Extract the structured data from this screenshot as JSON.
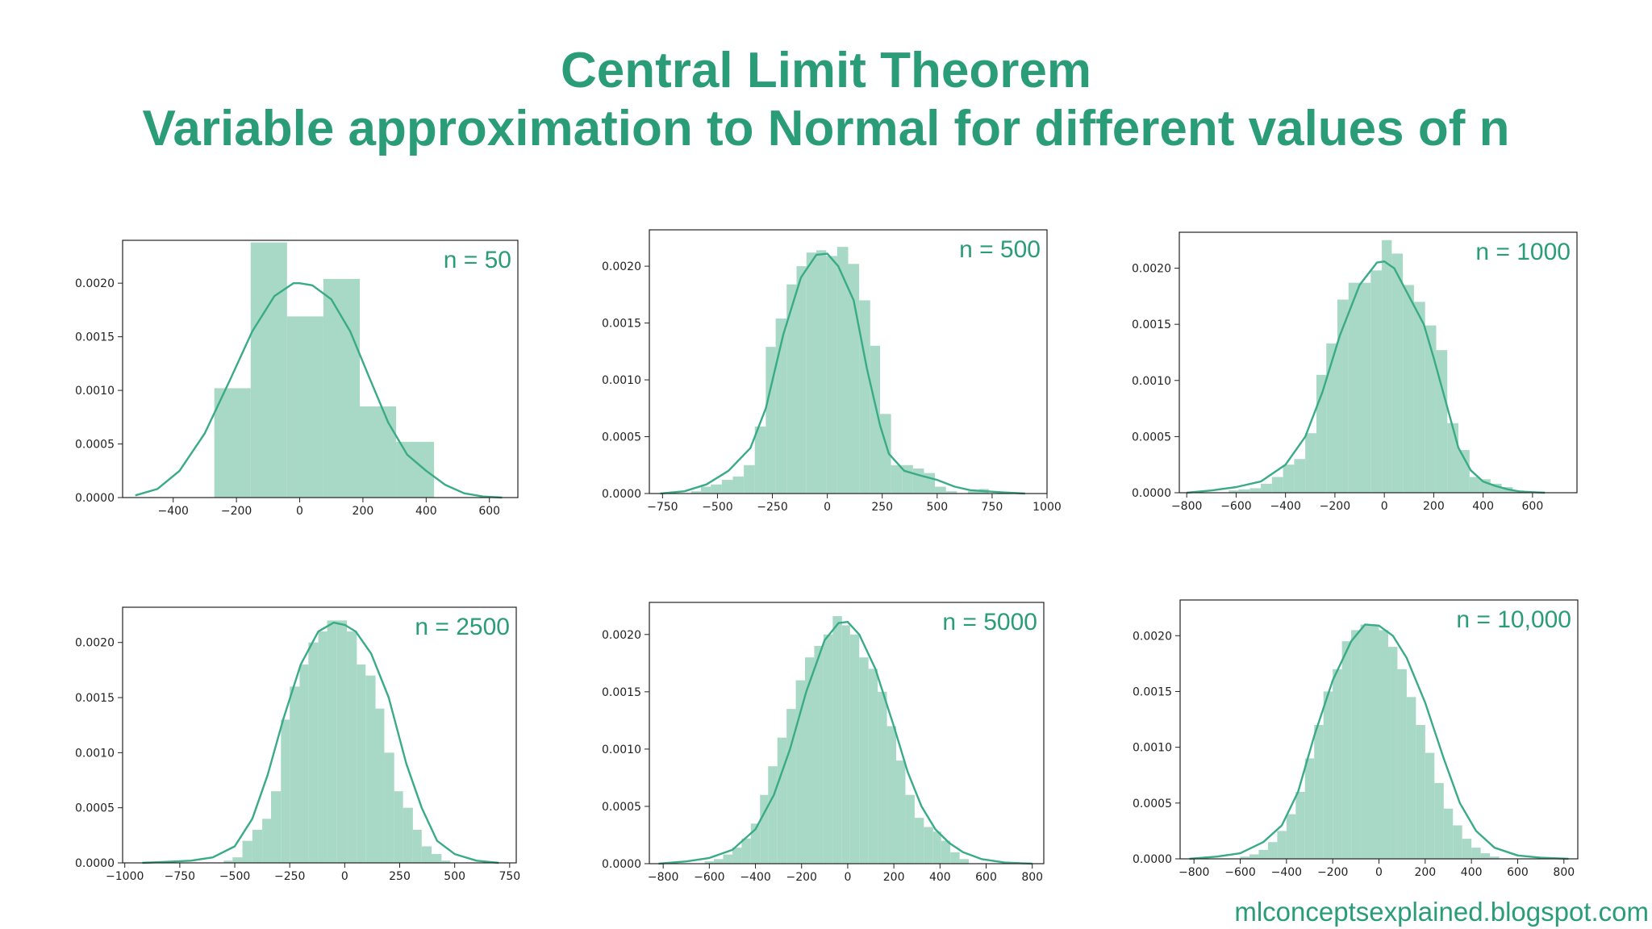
{
  "title_line1": "Central Limit Theorem",
  "title_line2": "Variable approximation to Normal for different values of n",
  "footer": "mlconceptsexplained.blogspot.com",
  "colors": {
    "accent": "#2a9d78",
    "bar": "#a8d8c6",
    "curve": "#3aab87"
  },
  "chart_data": [
    {
      "type": "bar",
      "annotation": "n = 50",
      "xlim": [
        -560,
        690
      ],
      "ylim": [
        0,
        0.0024
      ],
      "xticks": [
        -400,
        -200,
        0,
        200,
        400,
        600
      ],
      "xtick_labels": [
        "−400",
        "−200",
        "0",
        "200",
        "400",
        "600"
      ],
      "yticks": [
        0,
        0.0005,
        0.001,
        0.0015,
        0.002
      ],
      "ytick_labels": [
        "0.0000",
        "0.0005",
        "0.0010",
        "0.0015",
        "0.0020"
      ],
      "bin_edges": [
        -270,
        -155,
        -40,
        75,
        190,
        305,
        425
      ],
      "densities": [
        0.00102,
        0.00238,
        0.00169,
        0.00204,
        0.00085,
        0.00052
      ],
      "kde_x": [
        -520,
        -450,
        -380,
        -300,
        -220,
        -150,
        -80,
        -20,
        0,
        40,
        100,
        160,
        220,
        280,
        340,
        400,
        460,
        520,
        580,
        640
      ],
      "kde_y": [
        2e-05,
        8e-05,
        0.00025,
        0.0006,
        0.0011,
        0.00155,
        0.00188,
        0.002,
        0.002,
        0.00198,
        0.00185,
        0.00155,
        0.00112,
        0.0007,
        0.0004,
        0.00025,
        0.00012,
        4e-05,
        1e-05,
        0
      ]
    },
    {
      "type": "bar",
      "annotation": "n = 500",
      "xlim": [
        -810,
        1000
      ],
      "ylim": [
        0,
        0.00232
      ],
      "xticks": [
        -750,
        -500,
        -250,
        0,
        250,
        500,
        750,
        1000
      ],
      "xtick_labels": [
        "−750",
        "−500",
        "−250",
        "0",
        "250",
        "500",
        "750",
        "1000"
      ],
      "yticks": [
        0,
        0.0005,
        0.001,
        0.0015,
        0.002
      ],
      "ytick_labels": [
        "0.0000",
        "0.0005",
        "0.0010",
        "0.0015",
        "0.0020"
      ],
      "bin_edges": [
        -620,
        -575,
        -530,
        -480,
        -430,
        -380,
        -330,
        -280,
        -235,
        -185,
        -140,
        -95,
        -50,
        -5,
        45,
        95,
        145,
        195,
        240,
        290,
        340,
        390,
        440,
        490,
        540,
        590,
        640,
        690,
        735,
        785
      ],
      "densities": [
        2e-05,
        6e-05,
        8e-05,
        0.00012,
        0.00015,
        0.00025,
        0.00059,
        0.00129,
        0.00154,
        0.00184,
        0.002,
        0.00212,
        0.00214,
        0.00209,
        0.00217,
        0.00202,
        0.0017,
        0.0013,
        0.0007,
        0.00025,
        0.00025,
        0.00022,
        0.00018,
        6e-05,
        2e-05,
        0.0,
        2e-05,
        4e-05,
        0.0
      ],
      "kde_x": [
        -760,
        -650,
        -550,
        -450,
        -350,
        -280,
        -200,
        -120,
        -50,
        0,
        50,
        120,
        180,
        240,
        280,
        350,
        420,
        500,
        580,
        650,
        720,
        800,
        900
      ],
      "kde_y": [
        0,
        2e-05,
        8e-05,
        0.0002,
        0.0004,
        0.00075,
        0.0014,
        0.0019,
        0.0021,
        0.00211,
        0.002,
        0.0017,
        0.0011,
        0.0006,
        0.00035,
        0.0002,
        0.00016,
        0.00012,
        6e-05,
        3e-05,
        2e-05,
        1e-05,
        0
      ]
    },
    {
      "type": "bar",
      "annotation": "n = 1000",
      "xlim": [
        -830,
        780
      ],
      "ylim": [
        0,
        0.00232
      ],
      "xticks": [
        -800,
        -600,
        -400,
        -200,
        0,
        200,
        400,
        600
      ],
      "xtick_labels": [
        "−800",
        "−600",
        "−400",
        "−200",
        "0",
        "200",
        "400",
        "600"
      ],
      "yticks": [
        0,
        0.0005,
        0.001,
        0.0015,
        0.002
      ],
      "ytick_labels": [
        "0.0000",
        "0.0005",
        "0.0010",
        "0.0015",
        "0.0020"
      ],
      "bin_edges": [
        -630,
        -590,
        -545,
        -500,
        -455,
        -410,
        -365,
        -320,
        -275,
        -235,
        -190,
        -145,
        -100,
        -55,
        -10,
        30,
        75,
        120,
        165,
        210,
        255,
        300,
        345,
        385,
        430,
        475,
        520,
        565
      ],
      "densities": [
        2e-05,
        3e-05,
        4e-05,
        8e-05,
        0.00014,
        0.00025,
        0.0003,
        0.00053,
        0.00105,
        0.00133,
        0.00172,
        0.00187,
        0.00187,
        0.00198,
        0.00225,
        0.00213,
        0.00185,
        0.0017,
        0.00149,
        0.00127,
        0.00062,
        0.00038,
        0.00014,
        0.00012,
        8e-05,
        5e-05,
        2e-05
      ],
      "kde_x": [
        -800,
        -700,
        -600,
        -500,
        -400,
        -320,
        -250,
        -180,
        -100,
        -30,
        0,
        40,
        100,
        160,
        200,
        250,
        300,
        350,
        400,
        450,
        500,
        550,
        650
      ],
      "kde_y": [
        0,
        2e-05,
        5e-05,
        0.0001,
        0.00025,
        0.0005,
        0.0009,
        0.0014,
        0.00185,
        0.00205,
        0.00206,
        0.002,
        0.00175,
        0.0015,
        0.0012,
        0.0008,
        0.0004,
        0.0002,
        0.0001,
        6e-05,
        3e-05,
        1e-05,
        0
      ]
    },
    {
      "type": "bar",
      "annotation": "n = 2500",
      "xlim": [
        -1010,
        780
      ],
      "ylim": [
        0,
        0.00232
      ],
      "xticks": [
        -1000,
        -750,
        -500,
        -250,
        0,
        250,
        500,
        750
      ],
      "xtick_labels": [
        "−1000",
        "−750",
        "−500",
        "−250",
        "0",
        "250",
        "500",
        "750"
      ],
      "yticks": [
        0,
        0.0005,
        0.001,
        0.0015,
        0.002
      ],
      "ytick_labels": [
        "0.0000",
        "0.0005",
        "0.0010",
        "0.0015",
        "0.0020"
      ],
      "bin_edges": [
        -550,
        -510,
        -465,
        -420,
        -375,
        -335,
        -290,
        -250,
        -205,
        -165,
        -120,
        -80,
        -35,
        10,
        55,
        95,
        140,
        180,
        225,
        265,
        310,
        350,
        395,
        440,
        480
      ],
      "densities": [
        2e-05,
        5e-05,
        0.0002,
        0.0003,
        0.0004,
        0.00065,
        0.0013,
        0.0016,
        0.0018,
        0.002,
        0.0021,
        0.0022,
        0.0022,
        0.0021,
        0.0018,
        0.0017,
        0.0014,
        0.001,
        0.00065,
        0.0005,
        0.0003,
        0.00015,
        8e-05,
        2e-05
      ],
      "kde_x": [
        -920,
        -800,
        -700,
        -600,
        -500,
        -420,
        -350,
        -280,
        -200,
        -120,
        -50,
        0,
        50,
        120,
        200,
        280,
        350,
        420,
        500,
        600,
        700
      ],
      "kde_y": [
        0,
        1e-05,
        2e-05,
        5e-05,
        0.00015,
        0.0004,
        0.0008,
        0.0013,
        0.0018,
        0.0021,
        0.00218,
        0.00216,
        0.0021,
        0.0019,
        0.0015,
        0.0009,
        0.0005,
        0.0002,
        8e-05,
        2e-05,
        0
      ]
    },
    {
      "type": "bar",
      "annotation": "n = 5000",
      "xlim": [
        -860,
        850
      ],
      "ylim": [
        0,
        0.00228
      ],
      "xticks": [
        -800,
        -600,
        -400,
        -200,
        0,
        200,
        400,
        600,
        800
      ],
      "xtick_labels": [
        "−800",
        "−600",
        "−400",
        "−200",
        "0",
        "200",
        "400",
        "600",
        "800"
      ],
      "yticks": [
        0,
        0.0005,
        0.001,
        0.0015,
        0.002
      ],
      "ytick_labels": [
        "0.0000",
        "0.0005",
        "0.0010",
        "0.0015",
        "0.0020"
      ],
      "bin_edges": [
        -620,
        -580,
        -540,
        -500,
        -460,
        -420,
        -380,
        -345,
        -305,
        -265,
        -225,
        -185,
        -145,
        -105,
        -65,
        -25,
        10,
        50,
        90,
        130,
        170,
        210,
        250,
        290,
        330,
        370,
        405,
        445,
        485,
        525
      ],
      "densities": [
        2e-05,
        4e-05,
        8e-05,
        0.00014,
        0.00022,
        0.00035,
        0.0006,
        0.00085,
        0.0011,
        0.00135,
        0.0016,
        0.0018,
        0.0019,
        0.002,
        0.00216,
        0.00208,
        0.002,
        0.0018,
        0.0017,
        0.0015,
        0.0012,
        0.0009,
        0.0006,
        0.0004,
        0.00032,
        0.00028,
        0.0002,
        0.0001,
        4e-05
      ],
      "kde_x": [
        -820,
        -700,
        -600,
        -500,
        -400,
        -320,
        -250,
        -180,
        -100,
        -40,
        0,
        50,
        120,
        200,
        260,
        320,
        380,
        440,
        500,
        580,
        680,
        800
      ],
      "kde_y": [
        0,
        2e-05,
        5e-05,
        0.00012,
        0.0003,
        0.0006,
        0.001,
        0.0015,
        0.00195,
        0.0021,
        0.00211,
        0.002,
        0.0017,
        0.0012,
        0.0008,
        0.0005,
        0.0003,
        0.00018,
        0.0001,
        4e-05,
        1e-05,
        0
      ]
    },
    {
      "type": "bar",
      "annotation": "n = 10,000",
      "xlim": [
        -860,
        860
      ],
      "ylim": [
        0,
        0.00232
      ],
      "xticks": [
        -800,
        -600,
        -400,
        -200,
        0,
        200,
        400,
        600,
        800
      ],
      "xtick_labels": [
        "−800",
        "−600",
        "−400",
        "−200",
        "0",
        "200",
        "400",
        "600",
        "800"
      ],
      "yticks": [
        0,
        0.0005,
        0.001,
        0.0015,
        0.002
      ],
      "ytick_labels": [
        "0.0000",
        "0.0005",
        "0.0010",
        "0.0015",
        "0.0020"
      ],
      "bin_edges": [
        -600,
        -560,
        -520,
        -480,
        -440,
        -400,
        -360,
        -320,
        -280,
        -240,
        -200,
        -160,
        -120,
        -80,
        -40,
        0,
        40,
        80,
        120,
        160,
        200,
        240,
        280,
        320,
        360,
        400,
        440,
        480,
        520
      ],
      "densities": [
        2e-05,
        4e-05,
        8e-05,
        0.00015,
        0.00025,
        0.0004,
        0.0006,
        0.0009,
        0.0012,
        0.0015,
        0.0017,
        0.00195,
        0.00205,
        0.0021,
        0.0021,
        0.00205,
        0.0019,
        0.0017,
        0.00145,
        0.0012,
        0.00095,
        0.00068,
        0.00045,
        0.0003,
        0.00018,
        0.0001,
        5e-05,
        2e-05
      ],
      "kde_x": [
        -820,
        -700,
        -600,
        -500,
        -420,
        -350,
        -280,
        -200,
        -120,
        -60,
        0,
        60,
        120,
        200,
        280,
        350,
        420,
        500,
        600,
        700,
        820
      ],
      "kde_y": [
        0,
        2e-05,
        5e-05,
        0.00015,
        0.0003,
        0.0006,
        0.0011,
        0.0016,
        0.00195,
        0.0021,
        0.00209,
        0.002,
        0.0018,
        0.0014,
        0.0009,
        0.0005,
        0.00025,
        0.0001,
        3e-05,
        1e-05,
        0
      ]
    }
  ]
}
